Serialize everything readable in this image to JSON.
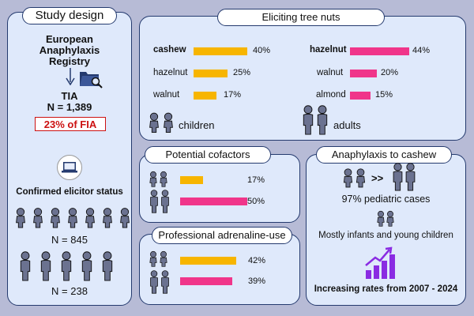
{
  "study": {
    "title": "Study design",
    "registry": [
      "European",
      "Anaphylaxis",
      "Registry"
    ],
    "tia": "TIA",
    "n": "N = 1,389",
    "fia_share": "23% of FIA",
    "confirmed": "Confirmed elicitor status",
    "n_children": "N = 845",
    "n_adults": "N = 238"
  },
  "nuts": {
    "title": "Eliciting tree nuts",
    "children_label": "children",
    "adults_label": "adults"
  },
  "cofactors": {
    "title": "Potential cofactors"
  },
  "adrenaline": {
    "title": "Professional adrenaline-use"
  },
  "cashew": {
    "title": "Anaphylaxis to cashew",
    "gt": ">>",
    "pediatric": "97% pediatric cases",
    "infants": "Mostly infants and young children",
    "rates": "Increasing rates from 2007 - 2024"
  },
  "colors": {
    "children": "#f7b500",
    "adults": "#f0358a"
  },
  "chart_data": [
    {
      "type": "bar",
      "title": "Eliciting tree nuts - children",
      "categories": [
        "cashew",
        "hazelnut",
        "walnut"
      ],
      "values": [
        40,
        25,
        17
      ],
      "labels": [
        "40%",
        "25%",
        "17%"
      ]
    },
    {
      "type": "bar",
      "title": "Eliciting tree nuts - adults",
      "categories": [
        "hazelnut",
        "walnut",
        "almond"
      ],
      "values": [
        44,
        20,
        15
      ],
      "labels": [
        "44%",
        "20%",
        "15%"
      ]
    },
    {
      "type": "bar",
      "title": "Potential cofactors",
      "categories": [
        "children",
        "adults"
      ],
      "values": [
        17,
        50
      ],
      "labels": [
        "17%",
        "50%"
      ]
    },
    {
      "type": "bar",
      "title": "Professional adrenaline-use",
      "categories": [
        "children",
        "adults"
      ],
      "values": [
        42,
        39
      ],
      "labels": [
        "42%",
        "39%"
      ]
    }
  ]
}
